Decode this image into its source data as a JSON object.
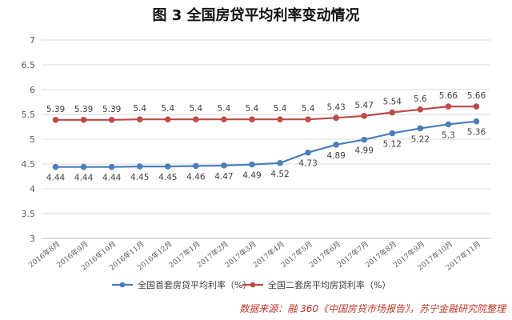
{
  "chart_data": {
    "type": "line",
    "title": "图 3  全国房贷平均利率变动情况",
    "categories": [
      "2016年8月",
      "2016年9月",
      "2016年10月",
      "2016年11月",
      "2016年12月",
      "2017年1月",
      "2017年2月",
      "2017年3月",
      "2017年4月",
      "2017年5月",
      "2017年6月",
      "2017年7月",
      "2017年8月",
      "2017年9月",
      "2017年10月",
      "2017年11月"
    ],
    "series": [
      {
        "name": "全国首套房贷平均利率（%）",
        "color": "#4a7ebb",
        "values": [
          4.44,
          4.44,
          4.44,
          4.45,
          4.45,
          4.46,
          4.47,
          4.49,
          4.52,
          4.73,
          4.89,
          4.99,
          5.12,
          5.22,
          5.3,
          5.36
        ]
      },
      {
        "name": "全国二套房平均房贷利率（%）",
        "color": "#be4b48",
        "values": [
          5.39,
          5.39,
          5.39,
          5.4,
          5.4,
          5.4,
          5.4,
          5.4,
          5.4,
          5.4,
          5.43,
          5.47,
          5.54,
          5.6,
          5.66,
          5.66
        ]
      }
    ],
    "yticks": [
      "3",
      "3.5",
      "4",
      "4.5",
      "5",
      "5.5",
      "6",
      "6.5",
      "7"
    ],
    "ylim": [
      3,
      7
    ],
    "grid": true,
    "legend_position": "bottom",
    "xlabel": "",
    "ylabel": ""
  },
  "source_note": "数据来源：融 360《中国房贷市场报告》，苏宁金融研究院整理"
}
